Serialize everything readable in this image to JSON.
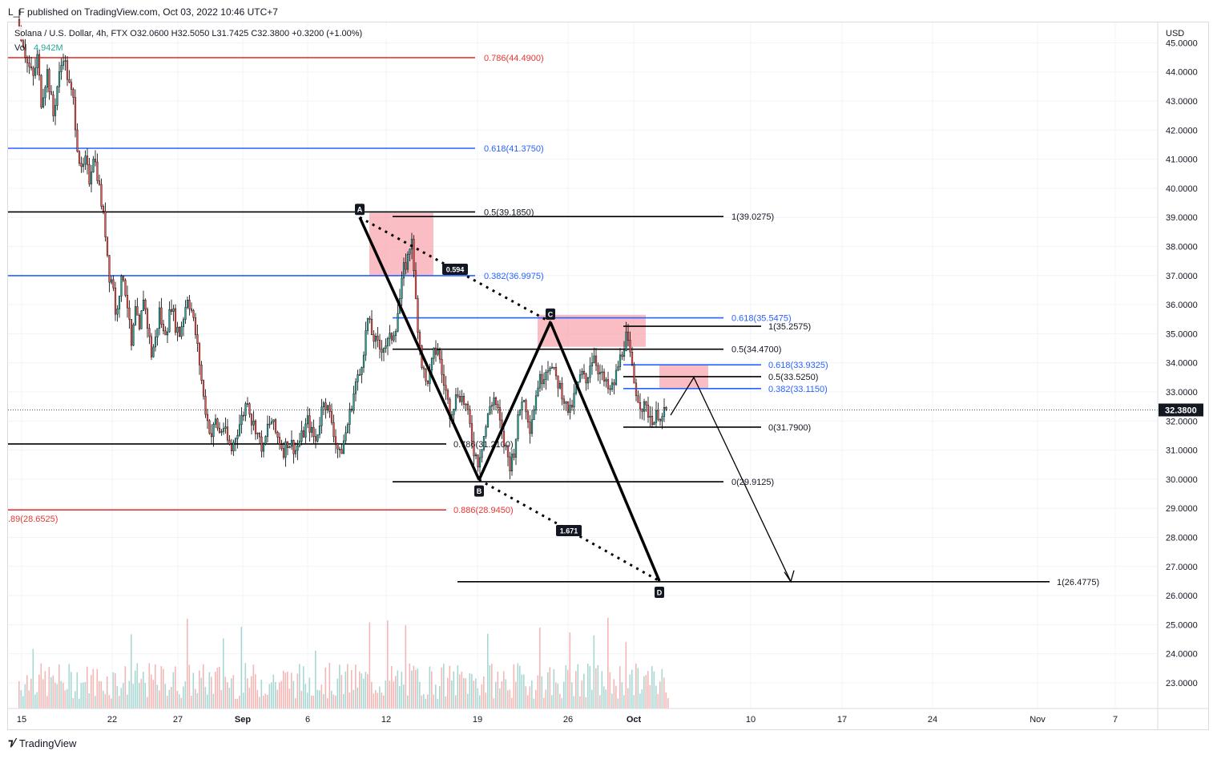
{
  "header": {
    "published_text": "L_F published on TradingView.com, Oct 03, 2022 10:46 UTC+7"
  },
  "footer": {
    "brand": "TradingView",
    "logo_icon": "tradingview-logo-icon"
  },
  "colors": {
    "up": "#26a69a",
    "down": "#ef5350",
    "red_line": "#e53935",
    "blue_line": "#2962ff",
    "black_line": "#000000",
    "red_text": "#e53935",
    "blue_text": "#2962ff",
    "zone_fill": "#f7a1aa",
    "vol_up": "#a8d8d3",
    "vol_down": "#f4b7b6",
    "grid": "#f0f3fa",
    "price_label_bg": "#131722"
  },
  "chart_data": {
    "type": "candlestick",
    "title": "Solana / U.S. Dollar, 4h, FTX",
    "ohlc_legend": {
      "open": "O32.0600",
      "high": "H32.5050",
      "low": "L31.7425",
      "close": "C32.3800",
      "change": "+0.3200 (+1.00%)"
    },
    "volume_legend": {
      "label": "Vol",
      "value": "4.942M"
    },
    "y_axis": {
      "currency": "USD",
      "ticks": [
        "23.0000",
        "24.0000",
        "25.0000",
        "26.0000",
        "27.0000",
        "28.0000",
        "29.0000",
        "30.0000",
        "31.0000",
        "32.0000",
        "33.0000",
        "34.0000",
        "35.0000",
        "36.0000",
        "37.0000",
        "38.0000",
        "39.0000",
        "40.0000",
        "41.0000",
        "42.0000",
        "43.0000",
        "44.0000",
        "45.0000"
      ],
      "range": [
        22.3,
        45.1
      ]
    },
    "x_axis": {
      "ticks": [
        "15",
        "22",
        "27",
        "Sep",
        "6",
        "12",
        "19",
        "26",
        "Oct",
        "10",
        "17",
        "24",
        "Nov",
        "7"
      ],
      "bold_ticks": [
        "Sep",
        "Oct"
      ]
    },
    "last_price": "32.3800",
    "candle_path": [
      [
        0,
        45.8
      ],
      [
        3,
        45.0
      ],
      [
        5,
        44.3
      ],
      [
        8,
        43.8
      ],
      [
        10,
        44.5
      ],
      [
        12,
        43.0
      ],
      [
        15,
        44.0
      ],
      [
        18,
        42.5
      ],
      [
        20,
        43.5
      ],
      [
        23,
        44.6
      ],
      [
        26,
        43.5
      ],
      [
        28,
        43.0
      ],
      [
        30,
        41.5
      ],
      [
        32,
        40.5
      ],
      [
        34,
        40.9
      ],
      [
        36,
        40.3
      ],
      [
        38,
        41.2
      ],
      [
        40,
        40.5
      ],
      [
        42,
        39.5
      ],
      [
        44,
        38.5
      ],
      [
        46,
        37.0
      ],
      [
        48,
        36.7
      ],
      [
        49,
        35.6
      ],
      [
        51,
        36.5
      ],
      [
        53,
        37.0
      ],
      [
        55,
        36.0
      ],
      [
        57,
        34.5
      ],
      [
        59,
        35.8
      ],
      [
        61,
        35.0
      ],
      [
        63,
        36.3
      ],
      [
        65,
        35.3
      ],
      [
        67,
        34.3
      ],
      [
        69,
        34.8
      ],
      [
        71,
        35.8
      ],
      [
        73,
        35.0
      ],
      [
        75,
        35.3
      ],
      [
        77,
        36.0
      ],
      [
        79,
        35.3
      ],
      [
        81,
        35.0
      ],
      [
        83,
        35.6
      ],
      [
        85,
        36.3
      ],
      [
        87,
        35.8
      ],
      [
        89,
        35.0
      ],
      [
        91,
        34.0
      ],
      [
        93,
        32.8
      ],
      [
        95,
        32.0
      ],
      [
        97,
        31.5
      ],
      [
        99,
        32.0
      ],
      [
        101,
        31.6
      ],
      [
        103,
        31.8
      ],
      [
        105,
        31.3
      ],
      [
        107,
        31.0
      ],
      [
        109,
        31.5
      ],
      [
        111,
        31.9
      ],
      [
        113,
        32.3
      ],
      [
        115,
        32.8
      ],
      [
        117,
        32.0
      ],
      [
        119,
        31.8
      ],
      [
        121,
        31.3
      ],
      [
        123,
        31.0
      ],
      [
        125,
        31.8
      ],
      [
        127,
        32.0
      ],
      [
        129,
        31.6
      ],
      [
        131,
        31.3
      ],
      [
        133,
        31.0
      ],
      [
        135,
        31.3
      ],
      [
        137,
        31.2
      ],
      [
        139,
        31.0
      ],
      [
        141,
        31.3
      ],
      [
        143,
        31.6
      ],
      [
        145,
        32.0
      ],
      [
        147,
        31.6
      ],
      [
        149,
        31.3
      ],
      [
        151,
        32.0
      ],
      [
        153,
        32.8
      ],
      [
        155,
        32.4
      ],
      [
        157,
        32.0
      ],
      [
        159,
        31.3
      ],
      [
        161,
        30.8
      ],
      [
        163,
        31.3
      ],
      [
        165,
        31.9
      ],
      [
        167,
        32.6
      ],
      [
        169,
        33.3
      ],
      [
        171,
        33.6
      ],
      [
        173,
        34.5
      ],
      [
        175,
        35.5
      ],
      [
        177,
        35.0
      ],
      [
        179,
        34.7
      ],
      [
        181,
        34.5
      ],
      [
        183,
        34.6
      ],
      [
        185,
        34.7
      ],
      [
        187,
        34.9
      ],
      [
        189,
        35.3
      ],
      [
        191,
        36.2
      ],
      [
        193,
        37.2
      ],
      [
        195,
        37.6
      ],
      [
        197,
        38.4
      ],
      [
        198,
        37.0
      ],
      [
        200,
        35.3
      ],
      [
        202,
        34.0
      ],
      [
        204,
        33.3
      ],
      [
        206,
        33.6
      ],
      [
        208,
        34.3
      ],
      [
        210,
        34.5
      ],
      [
        212,
        33.6
      ],
      [
        214,
        33.0
      ],
      [
        216,
        32.3
      ],
      [
        218,
        32.6
      ],
      [
        220,
        33.0
      ],
      [
        222,
        32.8
      ],
      [
        224,
        32.5
      ],
      [
        226,
        31.8
      ],
      [
        228,
        31.0
      ],
      [
        230,
        30.6
      ],
      [
        232,
        31.2
      ],
      [
        234,
        31.8
      ],
      [
        236,
        32.5
      ],
      [
        238,
        32.8
      ],
      [
        240,
        32.3
      ],
      [
        242,
        31.5
      ],
      [
        244,
        31.0
      ],
      [
        246,
        30.5
      ],
      [
        248,
        31.0
      ],
      [
        250,
        32.0
      ],
      [
        252,
        32.8
      ],
      [
        254,
        32.5
      ],
      [
        256,
        31.8
      ],
      [
        258,
        32.5
      ],
      [
        260,
        33.3
      ],
      [
        262,
        33.5
      ],
      [
        264,
        33.8
      ],
      [
        266,
        34.0
      ],
      [
        268,
        33.6
      ],
      [
        270,
        33.3
      ],
      [
        272,
        33.0
      ],
      [
        274,
        32.5
      ],
      [
        276,
        32.3
      ],
      [
        278,
        32.8
      ],
      [
        280,
        33.3
      ],
      [
        282,
        33.6
      ],
      [
        284,
        33.3
      ],
      [
        286,
        34.0
      ],
      [
        288,
        34.3
      ],
      [
        290,
        33.8
      ],
      [
        292,
        33.5
      ],
      [
        294,
        33.2
      ],
      [
        296,
        33.0
      ],
      [
        298,
        33.3
      ],
      [
        300,
        33.9
      ],
      [
        302,
        34.4
      ],
      [
        304,
        34.9
      ],
      [
        306,
        34.2
      ],
      [
        308,
        33.3
      ],
      [
        310,
        32.8
      ],
      [
        312,
        32.5
      ],
      [
        314,
        32.4
      ],
      [
        316,
        32.2
      ],
      [
        318,
        32.0
      ],
      [
        320,
        32.3
      ],
      [
        322,
        32.1
      ],
      [
        324,
        32.38
      ]
    ],
    "fib_lines": [
      {
        "label": "0.786(44.4900)",
        "value": 44.49,
        "color": "red",
        "text_color": "red"
      },
      {
        "label": "0.618(41.3750)",
        "value": 41.375,
        "color": "blue",
        "text_color": "blue"
      },
      {
        "label": "0.5(39.1850)",
        "value": 39.185,
        "color": "black",
        "text_color": "black"
      },
      {
        "label": "0.382(36.9975)",
        "value": 36.9975,
        "color": "blue",
        "text_color": "blue"
      },
      {
        "label": "0.786(31.2100)",
        "value": 31.21,
        "color": "black",
        "text_color": "black"
      },
      {
        "label": "0.886(28.9450)",
        "value": 28.945,
        "color": "red",
        "text_color": "red"
      },
      {
        "label": ".89(28.6525)",
        "value": 28.6525,
        "color": "none",
        "text_color": "red"
      },
      {
        "label": "1(39.0275)",
        "value": 39.0275,
        "color": "black",
        "text_color": "black"
      },
      {
        "label": "0.618(35.5475)",
        "value": 35.5475,
        "color": "blue",
        "text_color": "blue"
      },
      {
        "label": "0.5(34.4700)",
        "value": 34.47,
        "color": "black",
        "text_color": "black"
      },
      {
        "label": "0(29.9125)",
        "value": 29.9125,
        "color": "black",
        "text_color": "black"
      },
      {
        "label": "1(35.2575)",
        "value": 35.2575,
        "color": "black",
        "text_color": "black"
      },
      {
        "label": "0.618(33.9325)",
        "value": 33.9325,
        "color": "blue",
        "text_color": "blue"
      },
      {
        "label": "0.5(33.5250)",
        "value": 33.525,
        "color": "black",
        "text_color": "black"
      },
      {
        "label": "0.382(33.1150)",
        "value": 33.115,
        "color": "blue",
        "text_color": "blue"
      },
      {
        "label": "0(31.7900)",
        "value": 31.79,
        "color": "black",
        "text_color": "black"
      },
      {
        "label": "1(26.4775)",
        "value": 26.4775,
        "color": "black",
        "text_color": "black"
      }
    ],
    "pattern_points": [
      {
        "label": "A",
        "value": 39.0
      },
      {
        "label": "B",
        "value": 29.98
      },
      {
        "label": "C",
        "value": 35.4
      },
      {
        "label": "D",
        "value": 26.5
      }
    ],
    "ratios": [
      {
        "label": "0.594",
        "between": "A-C"
      },
      {
        "label": "1.671",
        "between": "B-D"
      }
    ],
    "zones": [
      {
        "name": "zone-near-a",
        "top": 39.15,
        "bottom": 36.98
      },
      {
        "name": "zone-near-c",
        "top": 35.65,
        "bottom": 34.55
      },
      {
        "name": "zone-projection",
        "top": 33.92,
        "bottom": 33.12
      }
    ],
    "projection": [
      33.5,
      32.3,
      26.48
    ],
    "grid": true
  }
}
